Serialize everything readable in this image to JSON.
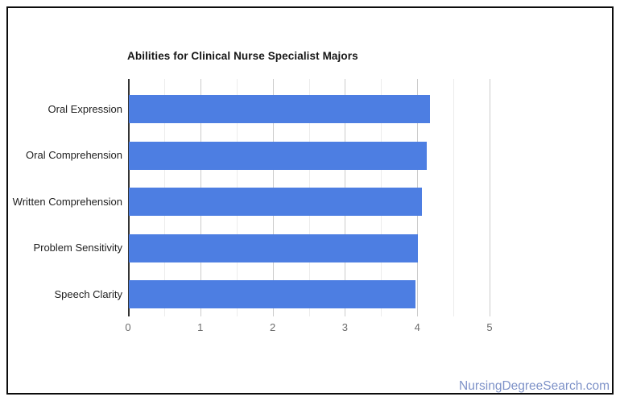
{
  "page": {
    "watermark": "NursingDegreeSearch.com"
  },
  "chart_data": {
    "type": "bar",
    "orientation": "horizontal",
    "title": "Abilities for Clinical Nurse Specialist Majors",
    "categories": [
      "Oral Expression",
      "Oral Comprehension",
      "Written Comprehension",
      "Problem Sensitivity",
      "Speech Clarity"
    ],
    "values": [
      4.17,
      4.12,
      4.05,
      4.0,
      3.96
    ],
    "xlabel": "",
    "ylabel": "",
    "xlim": [
      0,
      5
    ],
    "x_major_ticks": [
      0,
      1,
      2,
      3,
      4,
      5
    ],
    "x_minor_tick_step": 0.5,
    "grid": true,
    "legend": "none",
    "colors": {
      "bar": "#4d7ee2",
      "title": "#161616",
      "category_label": "#1f1f1f",
      "axis_tick_label": "#6b6b6b",
      "baseline": "#333333",
      "gridline_major": "#cccccc",
      "gridline_minor": "#ececec",
      "watermark": "#7e92c8",
      "frame_border": "#0c0c0c",
      "background": "#ffffff"
    }
  }
}
